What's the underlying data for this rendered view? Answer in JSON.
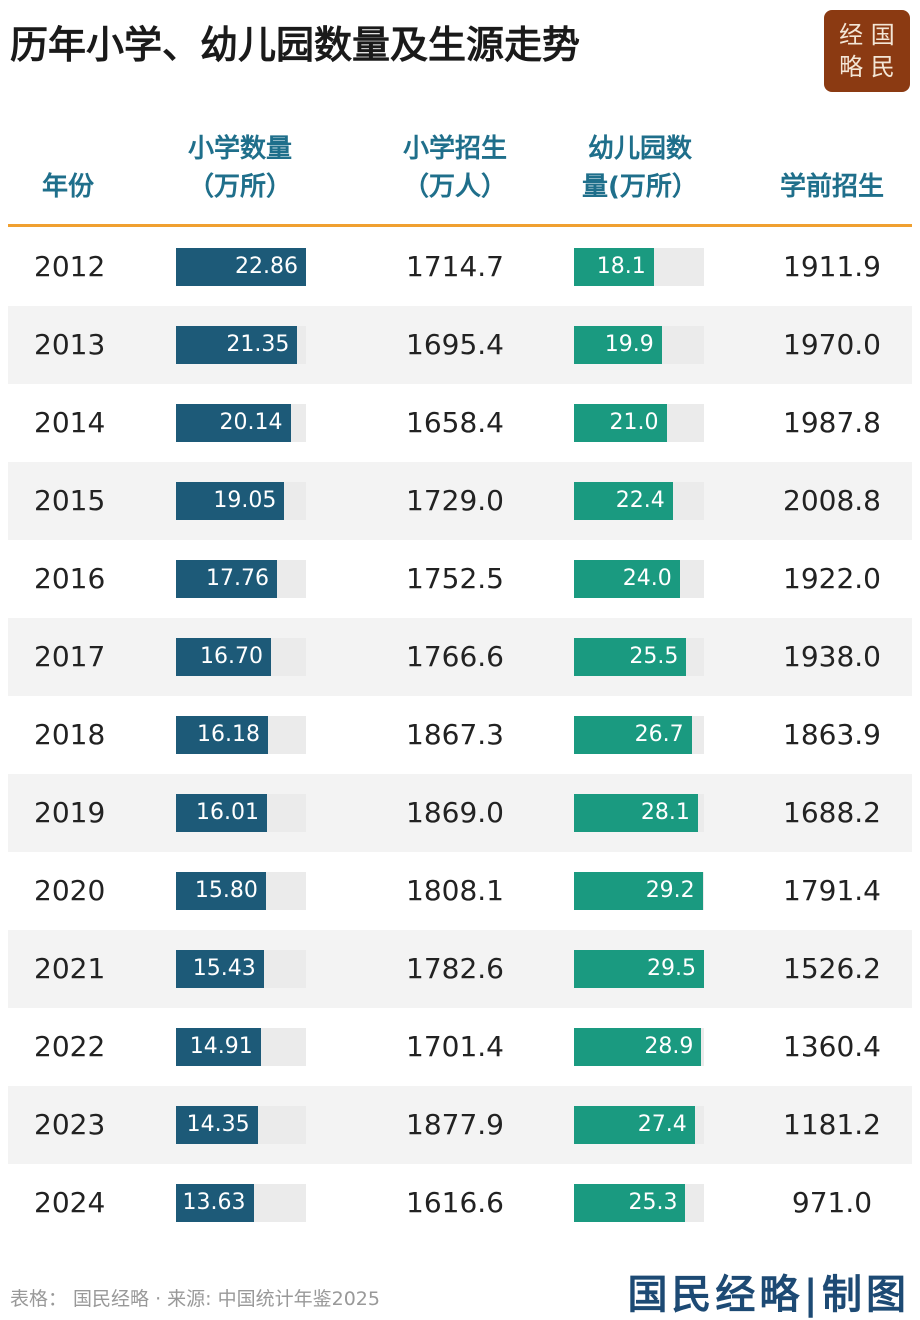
{
  "header": {
    "title": "历年小学、幼儿园数量及生源走势",
    "logo": [
      "经 国",
      "略 民"
    ]
  },
  "table": {
    "columns": [
      [
        "年份"
      ],
      [
        "小学数量",
        "（万所）"
      ],
      [
        "小学招生",
        "（万人）"
      ],
      [
        "幼儿园数",
        "量(万所）"
      ],
      [
        "学前招生"
      ]
    ],
    "rows": [
      [
        "2012",
        "22.86",
        "1714.7",
        "18.1",
        "1911.9"
      ],
      [
        "2013",
        "21.35",
        "1695.4",
        "19.9",
        "1970.0"
      ],
      [
        "2014",
        "20.14",
        "1658.4",
        "21.0",
        "1987.8"
      ],
      [
        "2015",
        "19.05",
        "1729.0",
        "22.4",
        "2008.8"
      ],
      [
        "2016",
        "17.76",
        "1752.5",
        "24.0",
        "1922.0"
      ],
      [
        "2017",
        "16.70",
        "1766.6",
        "25.5",
        "1938.0"
      ],
      [
        "2018",
        "16.18",
        "1867.3",
        "26.7",
        "1863.9"
      ],
      [
        "2019",
        "16.01",
        "1869.0",
        "28.1",
        "1688.2"
      ],
      [
        "2020",
        "15.80",
        "1808.1",
        "29.2",
        "1791.4"
      ],
      [
        "2021",
        "15.43",
        "1782.6",
        "29.5",
        "1526.2"
      ],
      [
        "2022",
        "14.91",
        "1701.4",
        "28.9",
        "1360.4"
      ],
      [
        "2023",
        "14.35",
        "1877.9",
        "27.4",
        "1181.2"
      ],
      [
        "2024",
        "13.63",
        "1616.6",
        "25.3",
        "971.0"
      ]
    ]
  },
  "footer": {
    "source": "表格： 国民经略 · 来源: 中国统计年鉴2025",
    "signature": "国民经略|制图"
  }
}
